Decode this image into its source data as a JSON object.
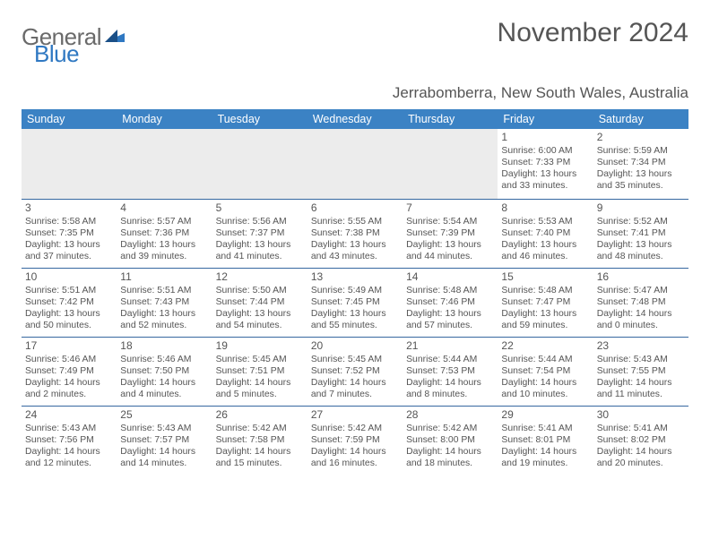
{
  "logo": {
    "text1": "General",
    "text2": "Blue"
  },
  "title": "November 2024",
  "subtitle": "Jerrabomberra, New South Wales, Australia",
  "header_bg": "#3b82c4",
  "header_fg": "#ffffff",
  "rule_color": "#3668a0",
  "spacer_bg": "#ececec",
  "text_color": "#555555",
  "font_family": "Arial",
  "daynum_fontsize": 12,
  "info_fontsize": 10.4,
  "day_labels": [
    "Sunday",
    "Monday",
    "Tuesday",
    "Wednesday",
    "Thursday",
    "Friday",
    "Saturday"
  ],
  "weeks": [
    [
      null,
      null,
      null,
      null,
      null,
      {
        "n": "1",
        "sr": "Sunrise: 6:00 AM",
        "ss": "Sunset: 7:33 PM",
        "dl": "Daylight: 13 hours and 33 minutes."
      },
      {
        "n": "2",
        "sr": "Sunrise: 5:59 AM",
        "ss": "Sunset: 7:34 PM",
        "dl": "Daylight: 13 hours and 35 minutes."
      }
    ],
    [
      {
        "n": "3",
        "sr": "Sunrise: 5:58 AM",
        "ss": "Sunset: 7:35 PM",
        "dl": "Daylight: 13 hours and 37 minutes."
      },
      {
        "n": "4",
        "sr": "Sunrise: 5:57 AM",
        "ss": "Sunset: 7:36 PM",
        "dl": "Daylight: 13 hours and 39 minutes."
      },
      {
        "n": "5",
        "sr": "Sunrise: 5:56 AM",
        "ss": "Sunset: 7:37 PM",
        "dl": "Daylight: 13 hours and 41 minutes."
      },
      {
        "n": "6",
        "sr": "Sunrise: 5:55 AM",
        "ss": "Sunset: 7:38 PM",
        "dl": "Daylight: 13 hours and 43 minutes."
      },
      {
        "n": "7",
        "sr": "Sunrise: 5:54 AM",
        "ss": "Sunset: 7:39 PM",
        "dl": "Daylight: 13 hours and 44 minutes."
      },
      {
        "n": "8",
        "sr": "Sunrise: 5:53 AM",
        "ss": "Sunset: 7:40 PM",
        "dl": "Daylight: 13 hours and 46 minutes."
      },
      {
        "n": "9",
        "sr": "Sunrise: 5:52 AM",
        "ss": "Sunset: 7:41 PM",
        "dl": "Daylight: 13 hours and 48 minutes."
      }
    ],
    [
      {
        "n": "10",
        "sr": "Sunrise: 5:51 AM",
        "ss": "Sunset: 7:42 PM",
        "dl": "Daylight: 13 hours and 50 minutes."
      },
      {
        "n": "11",
        "sr": "Sunrise: 5:51 AM",
        "ss": "Sunset: 7:43 PM",
        "dl": "Daylight: 13 hours and 52 minutes."
      },
      {
        "n": "12",
        "sr": "Sunrise: 5:50 AM",
        "ss": "Sunset: 7:44 PM",
        "dl": "Daylight: 13 hours and 54 minutes."
      },
      {
        "n": "13",
        "sr": "Sunrise: 5:49 AM",
        "ss": "Sunset: 7:45 PM",
        "dl": "Daylight: 13 hours and 55 minutes."
      },
      {
        "n": "14",
        "sr": "Sunrise: 5:48 AM",
        "ss": "Sunset: 7:46 PM",
        "dl": "Daylight: 13 hours and 57 minutes."
      },
      {
        "n": "15",
        "sr": "Sunrise: 5:48 AM",
        "ss": "Sunset: 7:47 PM",
        "dl": "Daylight: 13 hours and 59 minutes."
      },
      {
        "n": "16",
        "sr": "Sunrise: 5:47 AM",
        "ss": "Sunset: 7:48 PM",
        "dl": "Daylight: 14 hours and 0 minutes."
      }
    ],
    [
      {
        "n": "17",
        "sr": "Sunrise: 5:46 AM",
        "ss": "Sunset: 7:49 PM",
        "dl": "Daylight: 14 hours and 2 minutes."
      },
      {
        "n": "18",
        "sr": "Sunrise: 5:46 AM",
        "ss": "Sunset: 7:50 PM",
        "dl": "Daylight: 14 hours and 4 minutes."
      },
      {
        "n": "19",
        "sr": "Sunrise: 5:45 AM",
        "ss": "Sunset: 7:51 PM",
        "dl": "Daylight: 14 hours and 5 minutes."
      },
      {
        "n": "20",
        "sr": "Sunrise: 5:45 AM",
        "ss": "Sunset: 7:52 PM",
        "dl": "Daylight: 14 hours and 7 minutes."
      },
      {
        "n": "21",
        "sr": "Sunrise: 5:44 AM",
        "ss": "Sunset: 7:53 PM",
        "dl": "Daylight: 14 hours and 8 minutes."
      },
      {
        "n": "22",
        "sr": "Sunrise: 5:44 AM",
        "ss": "Sunset: 7:54 PM",
        "dl": "Daylight: 14 hours and 10 minutes."
      },
      {
        "n": "23",
        "sr": "Sunrise: 5:43 AM",
        "ss": "Sunset: 7:55 PM",
        "dl": "Daylight: 14 hours and 11 minutes."
      }
    ],
    [
      {
        "n": "24",
        "sr": "Sunrise: 5:43 AM",
        "ss": "Sunset: 7:56 PM",
        "dl": "Daylight: 14 hours and 12 minutes."
      },
      {
        "n": "25",
        "sr": "Sunrise: 5:43 AM",
        "ss": "Sunset: 7:57 PM",
        "dl": "Daylight: 14 hours and 14 minutes."
      },
      {
        "n": "26",
        "sr": "Sunrise: 5:42 AM",
        "ss": "Sunset: 7:58 PM",
        "dl": "Daylight: 14 hours and 15 minutes."
      },
      {
        "n": "27",
        "sr": "Sunrise: 5:42 AM",
        "ss": "Sunset: 7:59 PM",
        "dl": "Daylight: 14 hours and 16 minutes."
      },
      {
        "n": "28",
        "sr": "Sunrise: 5:42 AM",
        "ss": "Sunset: 8:00 PM",
        "dl": "Daylight: 14 hours and 18 minutes."
      },
      {
        "n": "29",
        "sr": "Sunrise: 5:41 AM",
        "ss": "Sunset: 8:01 PM",
        "dl": "Daylight: 14 hours and 19 minutes."
      },
      {
        "n": "30",
        "sr": "Sunrise: 5:41 AM",
        "ss": "Sunset: 8:02 PM",
        "dl": "Daylight: 14 hours and 20 minutes."
      }
    ]
  ]
}
